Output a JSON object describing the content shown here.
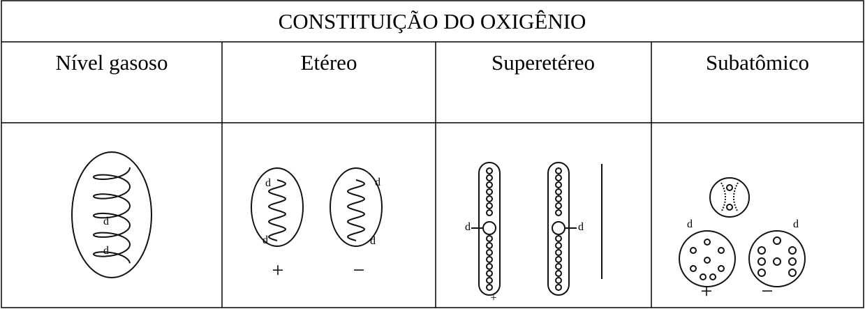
{
  "table": {
    "title": "CONSTITUIÇÃO DO OXIGÊNIO",
    "headers": [
      "Nível gasoso",
      "Etéreo",
      "Superetéreo",
      "Subatômico"
    ],
    "figures": [
      {
        "labels": [
          "d",
          "d"
        ]
      },
      {
        "labels": [
          "d",
          "d",
          "d",
          "d",
          "+",
          "−"
        ]
      },
      {
        "labels": [
          "d",
          "d",
          "+"
        ]
      },
      {
        "labels": [
          "d",
          "d",
          "+",
          "−"
        ]
      }
    ]
  }
}
